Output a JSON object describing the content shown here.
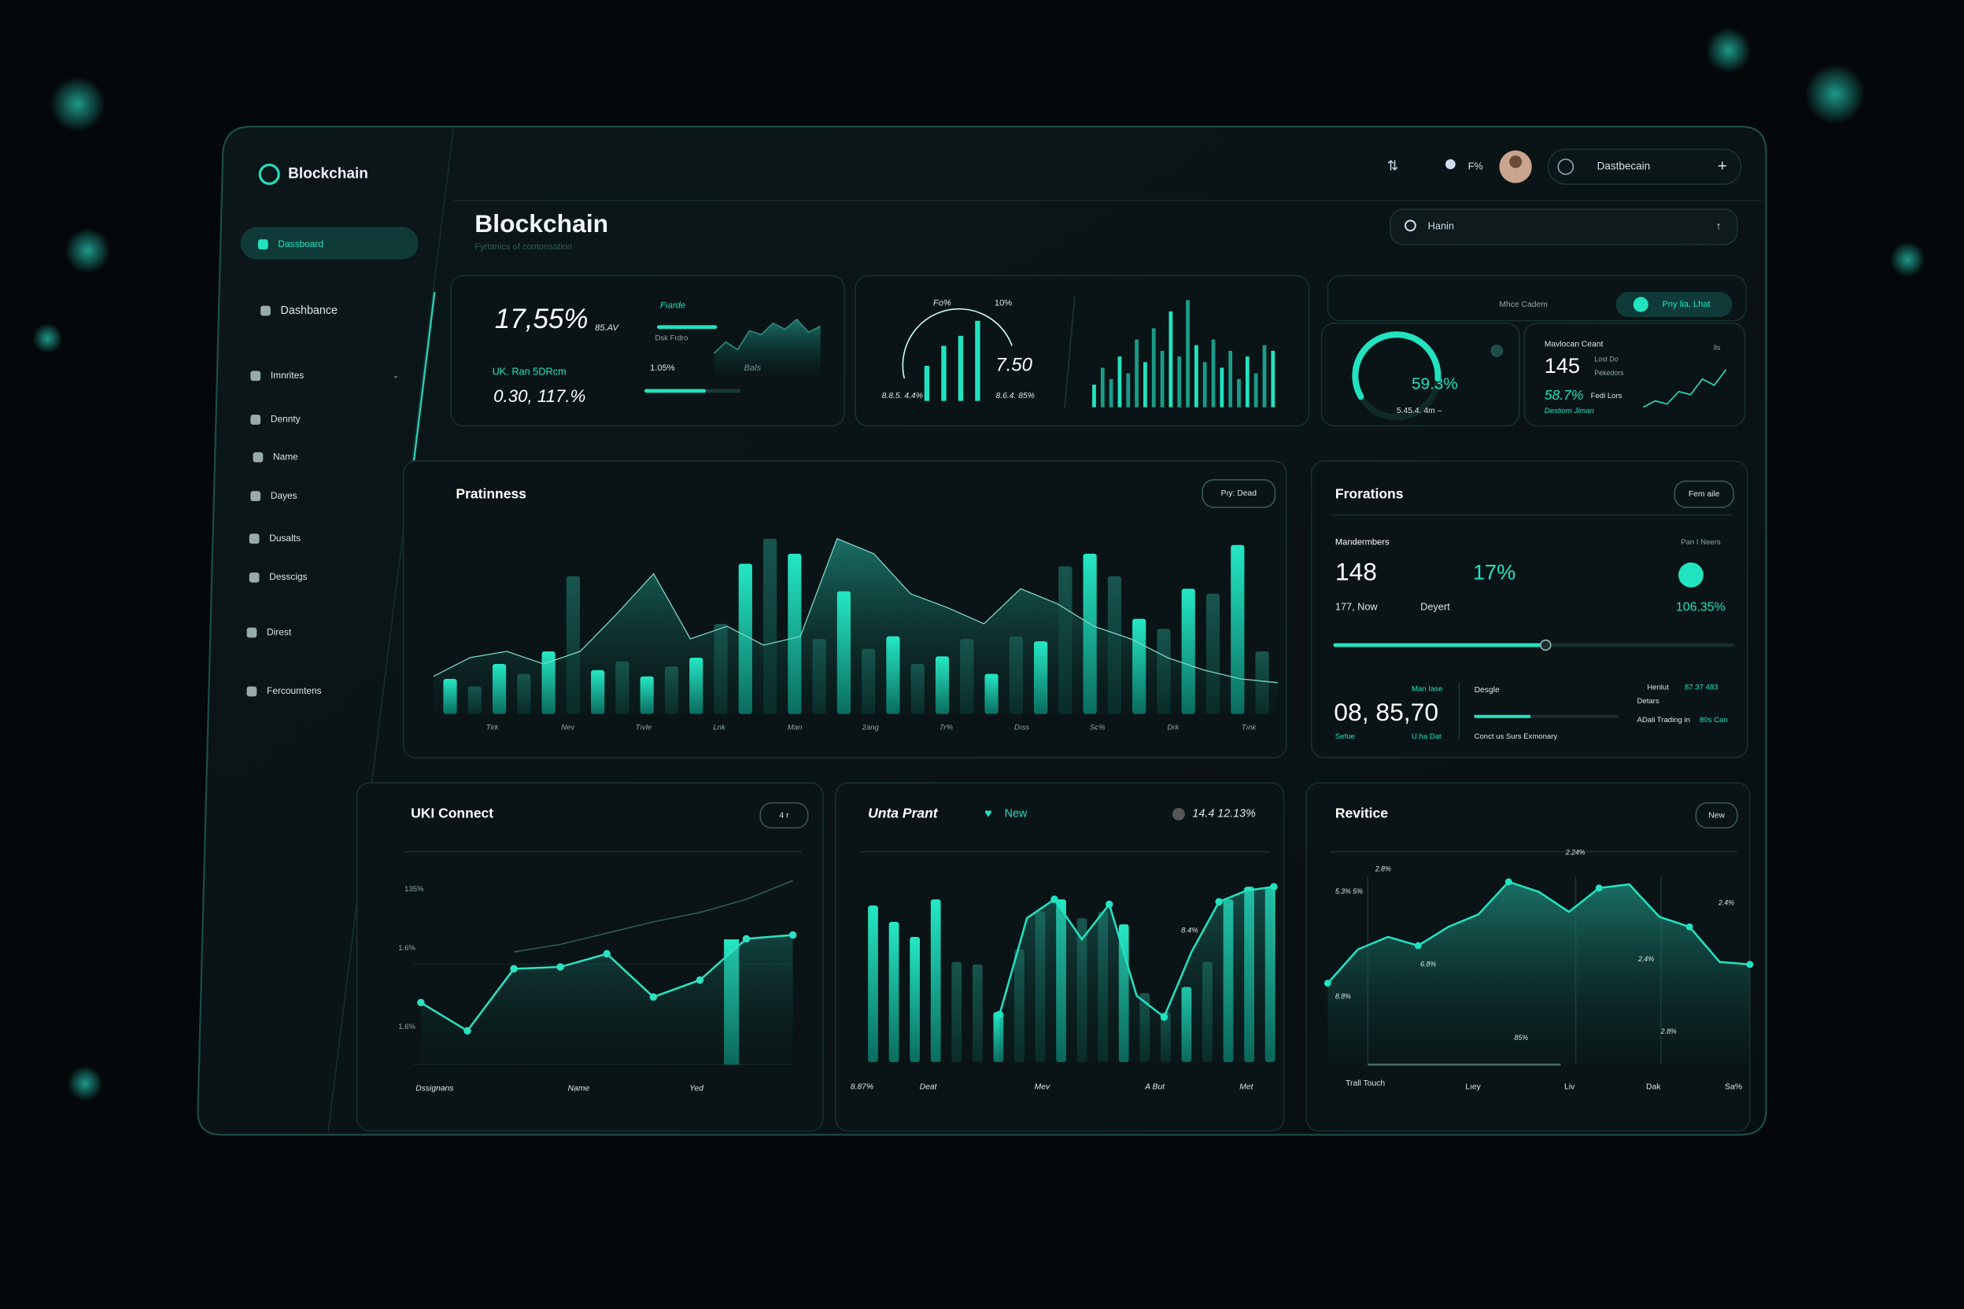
{
  "brand": "Blockchain",
  "sidebar": {
    "items": [
      "Dassboard",
      "Dashbance",
      "Imnrites",
      "Dennty",
      "Name",
      "Dayes",
      "Dusalts",
      "Desscigs",
      "Direst",
      "Fercoumtens"
    ]
  },
  "topbar": {
    "status": "F%",
    "workspace": "Dastbecain",
    "search": "Hanin"
  },
  "header": {
    "title": "Blockchain",
    "subtitle": "Fyrtanics of contonsation"
  },
  "stats": {
    "card1": {
      "texts": [
        "17,55%",
        "85.AV",
        "Fıarde",
        "Dsk Frdro",
        "UK. Ran 5DRcm",
        "0.30, 117.%",
        "1.05%",
        "Bals"
      ],
      "spark": [
        30,
        45,
        35,
        60,
        55,
        70,
        62,
        75,
        58,
        66
      ]
    },
    "card2": {
      "texts": [
        "Fo%",
        "10%",
        "7.50",
        "8.8.5. 4.4%",
        "8.6.4. 85%"
      ],
      "gauge_bars": [
        35,
        55,
        65,
        80
      ],
      "bars": [
        20,
        35,
        25,
        45,
        30,
        60,
        40,
        70,
        50,
        85,
        45,
        95,
        55,
        40,
        60,
        35,
        50,
        25,
        45,
        30,
        55,
        50
      ]
    },
    "card3": {
      "texts": [
        "Mhce Cadem",
        "Pny lia, Lhat"
      ]
    },
    "card4": {
      "gauge": {
        "value": 59.3,
        "label": "59.3%"
      },
      "texts": [
        "5.45.4. 4m –"
      ]
    },
    "card5": {
      "texts": [
        "Mavlocan Ceant",
        "145",
        "Lost Do",
        "Pekedors",
        "58.7%",
        "Fedi Lors",
        "Destiom Jiman",
        "Ils"
      ],
      "spark": [
        10,
        20,
        15,
        35,
        30,
        55,
        45,
        70
      ]
    }
  },
  "charts": {
    "pratinness": {
      "type": "bar",
      "title": "Pratinness",
      "button": "Pıy: Dead",
      "ylim": [
        0,
        150
      ],
      "values": [
        28,
        22,
        40,
        32,
        50,
        110,
        35,
        42,
        30,
        38,
        45,
        72,
        120,
        140,
        128,
        60,
        98,
        52,
        62,
        40,
        46,
        60,
        32,
        62,
        58,
        118,
        128,
        110,
        76,
        68,
        100,
        96,
        135,
        50
      ],
      "area_values": [
        30,
        45,
        50,
        40,
        50,
        80,
        112,
        60,
        70,
        55,
        62,
        140,
        128,
        96,
        85,
        72,
        100,
        88,
        70,
        60,
        45,
        35,
        28,
        25
      ],
      "x_labels": [
        "Tirk",
        "Nev",
        "Tıvle",
        "Lnk",
        "Man",
        "2ang",
        "7r%",
        "Dıss",
        "Sc%",
        "Drk",
        "Tınk"
      ]
    },
    "frorations": {
      "title": "Frorations",
      "button": "Fem aile",
      "texts": [
        "Mandermbers",
        "Pan I Neers",
        "148",
        "17%",
        "177, Now",
        "Deyert",
        "106.35%",
        "08, 85,70",
        "Man Iase",
        "Desgle",
        "Sefue",
        "U.ha Dat",
        "Conct us Surs Exmonary",
        "Henlut",
        "Detars",
        "87.37 483",
        "ADali Trading in",
        "80s Can"
      ],
      "progress": 53,
      "secondary_progress": 39
    },
    "uki": {
      "type": "line",
      "title": "UKI Connect",
      "button": "4 r",
      "ylim": [
        0,
        100
      ],
      "y_labels": [
        "135%",
        "1.6%",
        "1.6%"
      ],
      "series": [
        {
          "color": "#2de0c0",
          "values": [
            33,
            18,
            51,
            52,
            59,
            36,
            45,
            67,
            69
          ]
        },
        {
          "color": "#2f5a56",
          "values": [
            null,
            null,
            60,
            64,
            70,
            76,
            81,
            88,
            98
          ]
        }
      ],
      "x_labels": [
        "Dssignans",
        "Name",
        "Yed"
      ]
    },
    "unta": {
      "type": "bar",
      "title": "Unta Prant",
      "badge": "New",
      "stat": "14.4 12.13%",
      "ylim": [
        0,
        150
      ],
      "values": [
        125,
        112,
        100,
        130,
        80,
        78,
        40,
        90,
        120,
        130,
        115,
        120,
        110,
        55,
        40,
        60,
        80,
        130,
        140,
        140
      ],
      "line_values": [
        38,
        115,
        130,
        98,
        126,
        53,
        36,
        88,
        128,
        137,
        140
      ],
      "annotation": "8.4%",
      "x_labels": [
        "8.87%",
        "Deat",
        "Mev",
        "A But",
        "Met"
      ]
    },
    "revitice": {
      "type": "area",
      "title": "Revitice",
      "button": "New",
      "ylim": [
        0,
        160
      ],
      "values": [
        65,
        92,
        102,
        95,
        110,
        120,
        146,
        138,
        122,
        141,
        144,
        118,
        110,
        82,
        80
      ],
      "annotations": [
        "2.8%",
        "5.3% 5%",
        "6.8%",
        "8.8%",
        "2.24%",
        "2.4%",
        "2.4%",
        "85%",
        "2.8%"
      ],
      "x_labels": [
        "Trall Touch",
        "Lıey",
        "Liv",
        "Dak",
        "Sa%"
      ]
    }
  }
}
